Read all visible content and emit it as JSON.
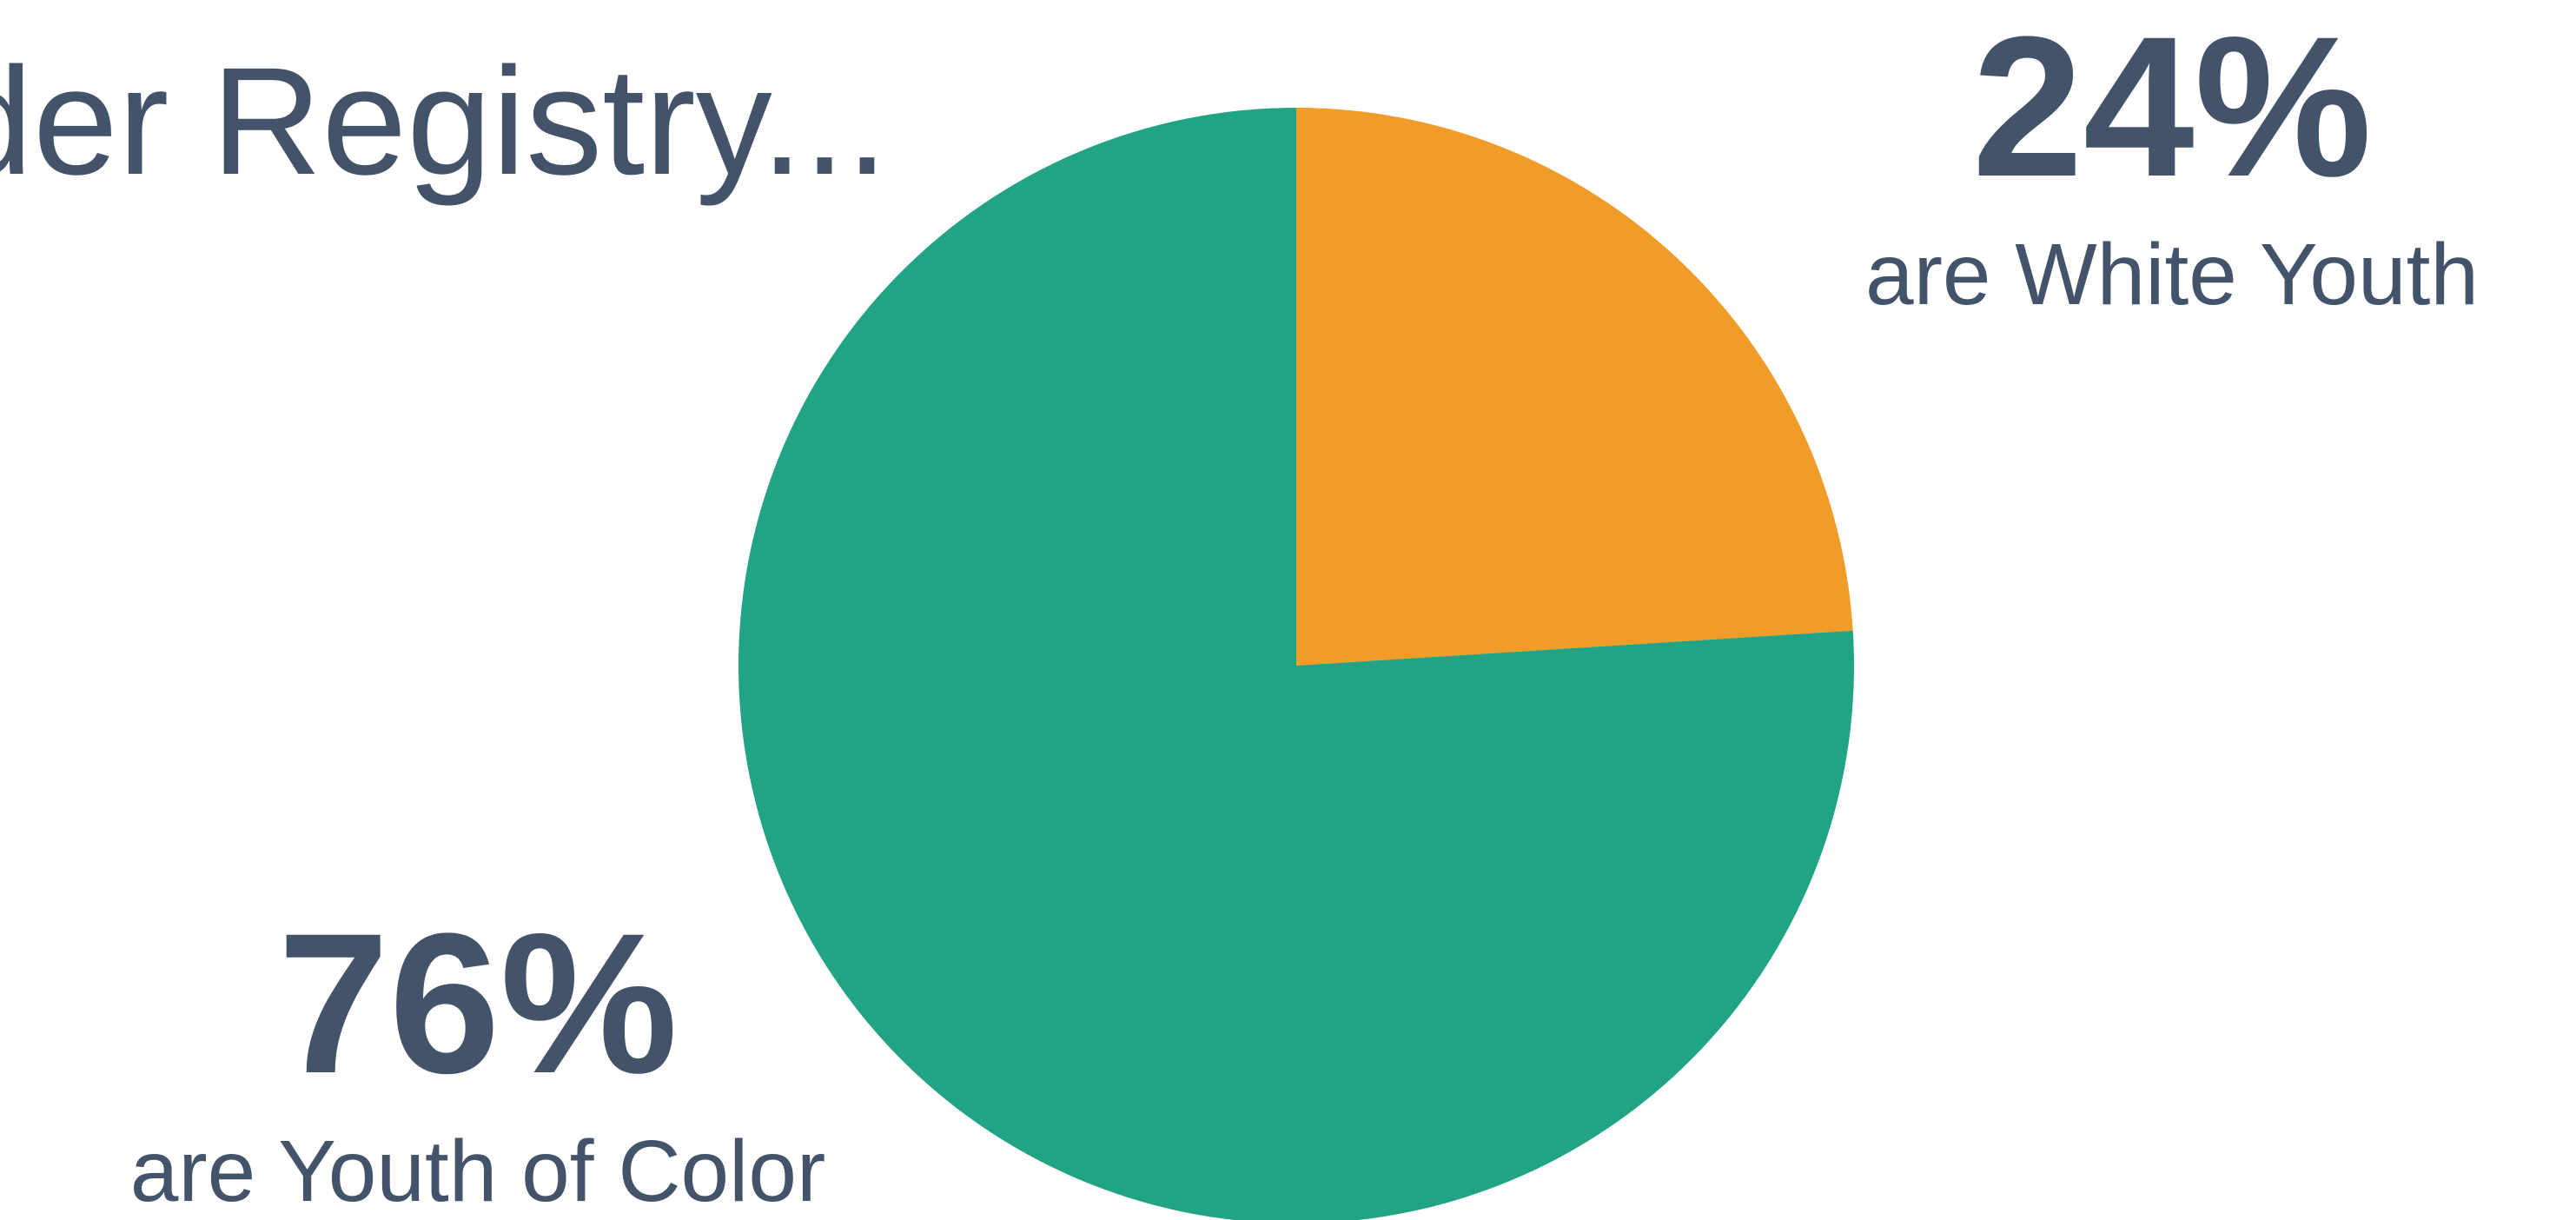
{
  "title": "der Registry...",
  "chart_data": {
    "type": "pie",
    "title": "",
    "slices": [
      {
        "label": "are White Youth",
        "value": 24,
        "display": "24%",
        "color": "#f09c29"
      },
      {
        "label": "are Youth of Color",
        "value": 76,
        "display": "76%",
        "color": "#21a386"
      }
    ],
    "start_angle": "12 o'clock",
    "direction": "clockwise",
    "legend": "none"
  },
  "callouts": {
    "white": {
      "percent": "24%",
      "label": "are White Youth"
    },
    "color": {
      "percent": "76%",
      "label": "are Youth of Color"
    }
  },
  "colors": {
    "text": "#43536a",
    "white_youth": "#f09c29",
    "youth_of_color": "#21a386"
  }
}
